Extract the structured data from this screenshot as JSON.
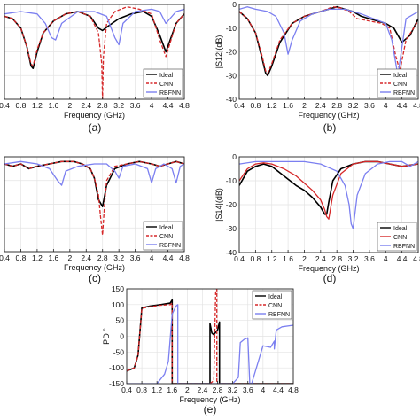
{
  "figure": {
    "legend_labels": [
      "Ideal",
      "CNN",
      "RBFNN"
    ],
    "colors": {
      "ideal": "#000000",
      "cnn": "#d62728",
      "rbfnn": "#7b7ff0"
    }
  },
  "chart_data": [
    {
      "id": "a",
      "caption": "(a)",
      "type": "line",
      "xlabel": "Frequency (GHz)",
      "ylabel": "",
      "xlim": [
        0.4,
        4.8
      ],
      "ylim": [
        -40,
        0
      ],
      "xticks": [
        "0.4",
        "0.8",
        "1.2",
        "1.6",
        "2",
        "2.4",
        "2.8",
        "3.2",
        "3.6",
        "4",
        "4.4",
        "4.8"
      ],
      "yticks": [],
      "legend": "bottom-right",
      "grid": true,
      "series": [
        {
          "name": "Ideal",
          "style": "solid",
          "x": [
            0.4,
            0.6,
            0.8,
            0.95,
            1.05,
            1.1,
            1.2,
            1.35,
            1.6,
            1.9,
            2.2,
            2.5,
            2.7,
            2.8,
            2.95,
            3.2,
            3.5,
            3.8,
            4.0,
            4.2,
            4.35,
            4.6,
            4.8
          ],
          "y": [
            -5,
            -6,
            -10,
            -18,
            -26,
            -27,
            -20,
            -12,
            -7,
            -4,
            -3,
            -5,
            -10,
            -11,
            -9,
            -6,
            -4,
            -3,
            -5,
            -13,
            -20,
            -8,
            -4
          ]
        },
        {
          "name": "CNN",
          "style": "dashed",
          "x": [
            0.4,
            0.6,
            0.8,
            0.95,
            1.05,
            1.1,
            1.2,
            1.35,
            1.6,
            1.9,
            2.2,
            2.5,
            2.7,
            2.78,
            2.8,
            2.82,
            2.9,
            3.1,
            3.4,
            3.7,
            4.0,
            4.2,
            4.35,
            4.6,
            4.8
          ],
          "y": [
            -5,
            -6,
            -10,
            -18,
            -25,
            -26,
            -19,
            -12,
            -7,
            -4,
            -3,
            -5,
            -12,
            -25,
            -40,
            -22,
            -8,
            -3,
            -1,
            -2,
            -4,
            -15,
            -22,
            -8,
            -4
          ]
        },
        {
          "name": "RBFNN",
          "style": "solid",
          "x": [
            0.4,
            0.8,
            1.2,
            1.4,
            1.55,
            1.65,
            1.8,
            2.2,
            2.6,
            2.9,
            3.1,
            3.2,
            3.3,
            3.6,
            4.0,
            4.2,
            4.35,
            4.6,
            4.8
          ],
          "y": [
            -4,
            -3,
            -4,
            -8,
            -14,
            -15,
            -8,
            -3,
            -3,
            -5,
            -14,
            -17,
            -8,
            -3,
            -2,
            -3,
            -8,
            -3,
            -2
          ]
        }
      ]
    },
    {
      "id": "b",
      "caption": "(b)",
      "type": "line",
      "xlabel": "Frequency (GHz)",
      "ylabel": "|S12|(dB)",
      "xlim": [
        0.4,
        4.8
      ],
      "ylim": [
        -40,
        0
      ],
      "xticks": [
        "0.4",
        "0.8",
        "1.2",
        "1.6",
        "2",
        "2.4",
        "2.8",
        "3.2",
        "3.6",
        "4",
        "4.4",
        "4.8"
      ],
      "yticks": [
        "0",
        "-10",
        "-20",
        "-30",
        "-40"
      ],
      "legend": "bottom-right",
      "grid": true,
      "series": [
        {
          "name": "Ideal",
          "style": "solid",
          "x": [
            0.4,
            0.6,
            0.8,
            0.95,
            1.05,
            1.1,
            1.2,
            1.4,
            1.7,
            2.0,
            2.4,
            2.8,
            3.0,
            3.2,
            3.4,
            3.6,
            3.8,
            4.0,
            4.2,
            4.4,
            4.6,
            4.8
          ],
          "y": [
            -3,
            -6,
            -12,
            -22,
            -29,
            -30,
            -26,
            -16,
            -8,
            -5,
            -3,
            -1,
            -2,
            -3,
            -5,
            -6,
            -7,
            -8,
            -10,
            -16,
            -13,
            -6
          ]
        },
        {
          "name": "CNN",
          "style": "dashed",
          "x": [
            0.4,
            0.6,
            0.8,
            0.95,
            1.05,
            1.1,
            1.2,
            1.4,
            1.7,
            2.0,
            2.4,
            2.7,
            2.9,
            3.1,
            3.3,
            3.6,
            3.9,
            4.1,
            4.25,
            4.35,
            4.5,
            4.8
          ],
          "y": [
            -3,
            -6,
            -12,
            -21,
            -28,
            -29,
            -25,
            -15,
            -8,
            -5,
            -3,
            -1,
            -1.5,
            -3,
            -6,
            -7,
            -8,
            -10,
            -22,
            -28,
            -15,
            -7
          ]
        },
        {
          "name": "RBFNN",
          "style": "solid",
          "x": [
            0.4,
            0.6,
            0.8,
            1.1,
            1.3,
            1.5,
            1.6,
            1.7,
            1.9,
            2.2,
            2.6,
            3.0,
            3.4,
            3.7,
            4.0,
            4.15,
            4.3,
            4.5,
            4.8
          ],
          "y": [
            -2,
            -1,
            -2,
            -3,
            -5,
            -12,
            -21,
            -15,
            -7,
            -4,
            -2,
            -2,
            -4,
            -6,
            -8,
            -15,
            -30,
            -6,
            -3
          ]
        }
      ]
    },
    {
      "id": "c",
      "caption": "(c)",
      "type": "line",
      "xlabel": "Frequency (GHz)",
      "ylabel": "",
      "xlim": [
        0.4,
        4.8
      ],
      "ylim": [
        -40,
        0
      ],
      "xticks": [
        "0.4",
        "0.8",
        "1.2",
        "1.6",
        "2",
        "2.4",
        "2.8",
        "3.2",
        "3.6",
        "4",
        "4.4",
        "4.8"
      ],
      "yticks": [],
      "legend": "bottom-right",
      "grid": true,
      "series": [
        {
          "name": "Ideal",
          "style": "solid",
          "x": [
            0.4,
            0.6,
            0.8,
            1.0,
            1.2,
            1.5,
            1.8,
            2.1,
            2.3,
            2.5,
            2.6,
            2.7,
            2.8,
            2.9,
            3.1,
            3.4,
            3.7,
            4.0,
            4.2,
            4.4,
            4.6,
            4.8
          ],
          "y": [
            -3,
            -4,
            -3,
            -5,
            -4,
            -3,
            -2,
            -2,
            -3,
            -5,
            -9,
            -18,
            -21,
            -12,
            -5,
            -3,
            -2,
            -3,
            -4,
            -3,
            -2,
            -3
          ]
        },
        {
          "name": "CNN",
          "style": "dashed",
          "x": [
            0.4,
            0.6,
            0.8,
            1.0,
            1.2,
            1.5,
            1.8,
            2.1,
            2.3,
            2.5,
            2.6,
            2.7,
            2.75,
            2.8,
            2.85,
            2.9,
            3.1,
            3.4,
            3.7,
            4.0,
            4.2,
            4.4,
            4.6,
            4.8
          ],
          "y": [
            -3,
            -4,
            -3,
            -5,
            -4,
            -3,
            -2,
            -2,
            -3,
            -5,
            -9,
            -16,
            -25,
            -33,
            -20,
            -10,
            -4,
            -3,
            -2,
            -3,
            -4,
            -3,
            -2,
            -3
          ]
        },
        {
          "name": "RBFNN",
          "style": "solid",
          "x": [
            0.4,
            0.8,
            1.2,
            1.5,
            1.7,
            1.8,
            1.9,
            2.2,
            2.6,
            2.9,
            3.1,
            3.2,
            3.3,
            3.6,
            3.9,
            4.0,
            4.1,
            4.3,
            4.5,
            4.6,
            4.7,
            4.8
          ],
          "y": [
            -3,
            -2,
            -3,
            -5,
            -10,
            -12,
            -6,
            -4,
            -3,
            -3,
            -6,
            -9,
            -4,
            -3,
            -5,
            -11,
            -5,
            -3,
            -5,
            -11,
            -4,
            -3
          ]
        }
      ]
    },
    {
      "id": "d",
      "caption": "(d)",
      "type": "line",
      "xlabel": "Frequency (GHz)",
      "ylabel": "|S14|(dB)",
      "xlim": [
        0.4,
        4.8
      ],
      "ylim": [
        -40,
        0
      ],
      "xticks": [
        "0.4",
        "0.8",
        "1.2",
        "1.6",
        "2",
        "2.4",
        "2.8",
        "3.2",
        "3.6",
        "4",
        "4.4",
        "4.8"
      ],
      "yticks": [
        "0",
        "-10",
        "-20",
        "-30",
        "-40"
      ],
      "legend": "bottom-right",
      "grid": true,
      "series": [
        {
          "name": "Ideal",
          "style": "solid",
          "x": [
            0.4,
            0.6,
            0.8,
            1.0,
            1.2,
            1.5,
            1.8,
            2.0,
            2.2,
            2.4,
            2.5,
            2.55,
            2.6,
            2.7,
            2.9,
            3.2,
            3.5,
            3.8,
            4.1,
            4.4,
            4.8
          ],
          "y": [
            -12,
            -6,
            -4,
            -3,
            -4,
            -8,
            -12,
            -14,
            -17,
            -21,
            -24,
            -24,
            -19,
            -10,
            -5,
            -3,
            -2,
            -2,
            -3,
            -4,
            -3
          ]
        },
        {
          "name": "CNN",
          "style": "solid",
          "x": [
            0.4,
            0.6,
            0.8,
            1.0,
            1.2,
            1.5,
            1.8,
            2.0,
            2.2,
            2.4,
            2.5,
            2.55,
            2.6,
            2.7,
            2.9,
            3.2,
            3.5,
            3.8,
            4.1,
            4.4,
            4.8
          ],
          "y": [
            -10,
            -5,
            -3,
            -2.5,
            -3,
            -5,
            -8,
            -11,
            -14,
            -18,
            -22,
            -25,
            -26,
            -16,
            -7,
            -3,
            -2,
            -2,
            -3,
            -4,
            -3
          ]
        },
        {
          "name": "RBFNN",
          "style": "solid",
          "x": [
            0.4,
            0.8,
            1.2,
            1.6,
            2.0,
            2.4,
            2.8,
            3.0,
            3.1,
            3.15,
            3.2,
            3.3,
            3.5,
            3.8,
            4.1,
            4.4,
            4.6,
            4.8
          ],
          "y": [
            -3,
            -2,
            -2,
            -2,
            -2,
            -3,
            -6,
            -12,
            -20,
            -28,
            -30,
            -16,
            -7,
            -3,
            -2,
            -2,
            -4,
            -2
          ]
        }
      ]
    },
    {
      "id": "e",
      "caption": "(e)",
      "type": "line",
      "xlabel": "Frequency (GHz)",
      "ylabel": "PD °",
      "xlim": [
        0.4,
        4.8
      ],
      "ylim": [
        -150,
        150
      ],
      "xticks": [
        "0.4",
        "0.8",
        "1.2",
        "1.6",
        "2",
        "2.4",
        "2.8",
        "3.2",
        "3.6",
        "4",
        "4.4",
        "4.8"
      ],
      "yticks": [
        "150",
        "100",
        "50",
        "0",
        "-50",
        "-100",
        "-150"
      ],
      "legend": "top-right",
      "grid": true,
      "series": [
        {
          "name": "Ideal",
          "style": "solid",
          "x": [
            0.4,
            0.6,
            0.7,
            0.8,
            1.0,
            1.3,
            1.55,
            1.6,
            1.6,
            1.65,
            2.4,
            2.6,
            2.6,
            2.65,
            2.7,
            2.8,
            2.85,
            2.85,
            2.9,
            3.2,
            3.4,
            3.6,
            4.0,
            4.4,
            4.8
          ],
          "y": [
            -110,
            -100,
            -60,
            90,
            95,
            100,
            105,
            115,
            -150,
            -150,
            -150,
            -150,
            40,
            10,
            5,
            20,
            45,
            -150,
            -150,
            -150,
            -150,
            -150,
            -150,
            -150,
            -150
          ]
        },
        {
          "name": "CNN",
          "style": "dashed",
          "x": [
            0.4,
            0.6,
            0.7,
            0.8,
            1.0,
            1.3,
            1.55,
            1.6,
            1.6,
            1.65,
            2.6,
            2.7,
            2.75,
            2.78,
            2.78,
            2.8,
            3.2,
            3.6,
            4.0,
            4.4,
            4.8
          ],
          "y": [
            -110,
            -100,
            -60,
            88,
            93,
            98,
            100,
            105,
            -150,
            -150,
            -150,
            -140,
            140,
            150,
            -150,
            -150,
            -150,
            -150,
            -150,
            -150,
            -150
          ]
        },
        {
          "name": "RBFNN",
          "style": "solid",
          "x": [
            0.4,
            0.8,
            1.2,
            1.4,
            1.5,
            1.6,
            1.7,
            1.75,
            1.75,
            1.8,
            2.6,
            2.8,
            3.0,
            3.2,
            3.35,
            3.4,
            3.5,
            3.6,
            3.65,
            3.7,
            4.0,
            4.2,
            4.3,
            4.3,
            4.35,
            4.5,
            4.8
          ],
          "y": [
            -150,
            -150,
            -150,
            -120,
            -80,
            70,
            95,
            100,
            -150,
            -150,
            -150,
            -150,
            -150,
            -150,
            -130,
            -20,
            -10,
            -5,
            -150,
            -150,
            -30,
            -35,
            -15,
            -40,
            20,
            30,
            35
          ]
        }
      ]
    }
  ]
}
